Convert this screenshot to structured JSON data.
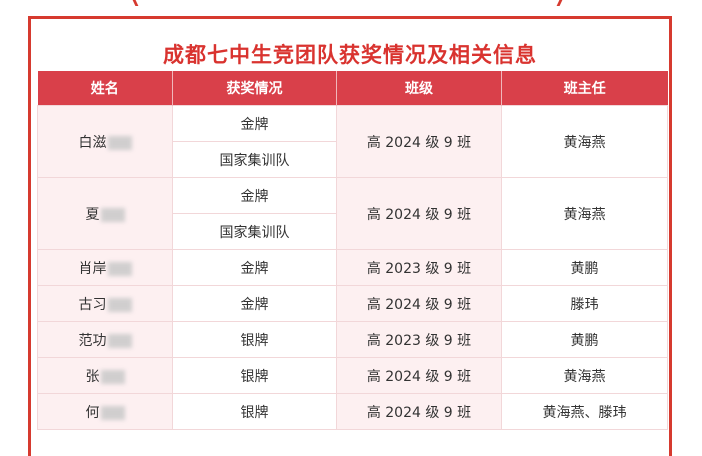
{
  "title": "成都七中生竞团队获奖情况及相关信息",
  "headers": [
    "姓名",
    "获奖情况",
    "班级",
    "班主任"
  ],
  "rows": [
    {
      "name": "白滋",
      "awards": [
        "金牌",
        "国家集训队"
      ],
      "class": "高 2024 级 9 班",
      "teacher": "黄海燕"
    },
    {
      "name": "夏",
      "awards": [
        "金牌",
        "国家集训队"
      ],
      "class": "高 2024 级 9 班",
      "teacher": "黄海燕"
    },
    {
      "name": "肖岸",
      "awards": [
        "金牌"
      ],
      "class": "高 2023 级 9 班",
      "teacher": "黄鹏"
    },
    {
      "name": "古习",
      "awards": [
        "金牌"
      ],
      "class": "高 2024 级 9 班",
      "teacher": "滕玮"
    },
    {
      "name": "范功",
      "awards": [
        "银牌"
      ],
      "class": "高 2023 级 9 班",
      "teacher": "黄鹏"
    },
    {
      "name": "张",
      "awards": [
        "银牌"
      ],
      "class": "高 2024 级 9 班",
      "teacher": "黄海燕"
    },
    {
      "name": "何",
      "awards": [
        "银牌"
      ],
      "class": "高 2024 级 9 班",
      "teacher": "黄海燕、滕玮"
    }
  ]
}
